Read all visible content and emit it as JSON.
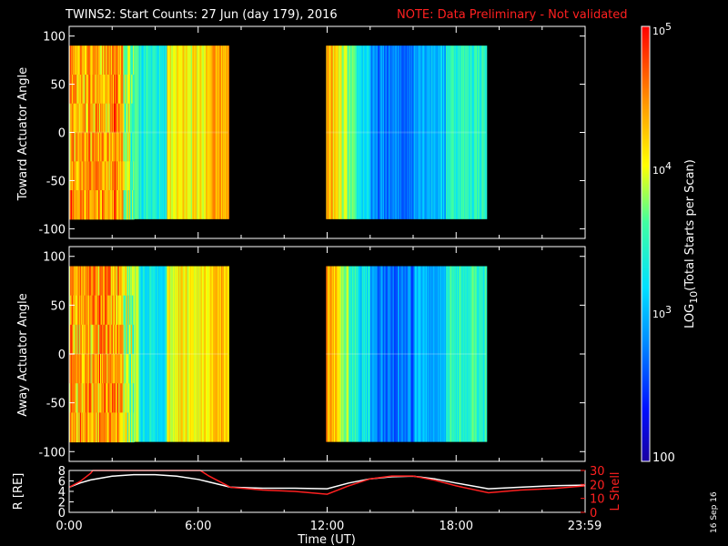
{
  "header": {
    "title": "TWINS2: Start Counts: 27 Jun (day 179), 2016",
    "note": "NOTE: Data Preliminary - Not validated"
  },
  "chart_data": [
    {
      "type": "heatmap",
      "ylabel": "Toward Actuator Angle",
      "ylim": [
        -110,
        110
      ],
      "yticks": [
        "100",
        "50",
        "0",
        "-50",
        "-100"
      ],
      "ytick_values": [
        100,
        50,
        0,
        -50,
        -100
      ],
      "x_coverage_hours": [
        [
          0.0,
          7.4
        ],
        [
          11.95,
          19.4
        ]
      ],
      "angle_range": [
        -90,
        90
      ]
    },
    {
      "type": "heatmap",
      "ylabel": "Away Actuator Angle",
      "ylim": [
        -110,
        110
      ],
      "yticks": [
        "100",
        "50",
        "0",
        "-50",
        "-100"
      ],
      "ytick_values": [
        100,
        50,
        0,
        -50,
        -100
      ],
      "x_coverage_hours": [
        [
          0.0,
          7.4
        ],
        [
          11.95,
          19.4
        ]
      ],
      "angle_range": [
        -90,
        90
      ]
    },
    {
      "type": "line",
      "xlabel": "Time (UT)",
      "xlim_hours": [
        0,
        24
      ],
      "xticks": [
        "0:00",
        "6:00",
        "12:00",
        "18:00",
        "23:59"
      ],
      "xtick_values": [
        0,
        6,
        12,
        18,
        23.98
      ],
      "left_axis": {
        "label": "R [RE]",
        "ylim": [
          0,
          8
        ],
        "yticks": [
          "8",
          "6",
          "4",
          "2",
          "0"
        ],
        "ytick_values": [
          8,
          6,
          4,
          2,
          0
        ]
      },
      "right_axis": {
        "label": "L Shell",
        "ylim": [
          0,
          30
        ],
        "yticks": [
          "30",
          "20",
          "10",
          "0"
        ],
        "ytick_values": [
          30,
          20,
          10,
          0
        ]
      },
      "series": [
        {
          "axis": "left",
          "color": "#ffffff",
          "x": [
            0,
            0.5,
            1,
            2,
            3,
            4,
            5,
            6,
            6.5,
            7.5,
            9,
            10.5,
            12,
            13,
            14,
            15,
            16,
            17,
            18,
            19.5,
            21,
            22.5,
            24
          ],
          "y": [
            4.8,
            5.6,
            6.2,
            6.9,
            7.2,
            7.2,
            6.9,
            6.3,
            5.8,
            4.8,
            4.6,
            4.6,
            4.5,
            5.6,
            6.4,
            6.8,
            6.9,
            6.4,
            5.6,
            4.5,
            4.8,
            5.1,
            5.2
          ]
        },
        {
          "axis": "right",
          "color": "#ff2020",
          "x": [
            0,
            0.5,
            1,
            1.1,
            1.2,
            6.1,
            6.5,
            7.5,
            9,
            10.5,
            12,
            13,
            14,
            15,
            16,
            17,
            18,
            19.5,
            21,
            22.5,
            24
          ],
          "y": [
            18,
            22,
            28,
            30,
            30,
            30,
            26,
            18,
            16,
            15,
            13,
            19,
            24,
            26,
            26,
            23,
            19,
            14,
            16,
            17,
            19
          ]
        }
      ]
    }
  ],
  "colorbar": {
    "label_pre": "LOG",
    "label_sub": "10",
    "label_post": "(Total Starts per Scan)",
    "tick_top_base": "10",
    "tick_top_exp": "5",
    "tick_mid_base": "10",
    "tick_mid_exp": "4",
    "tick_low_base": "10",
    "tick_low_exp": "3",
    "tick_bottom": "100"
  },
  "footer": {
    "date_stamp": "16 Sep 16"
  }
}
